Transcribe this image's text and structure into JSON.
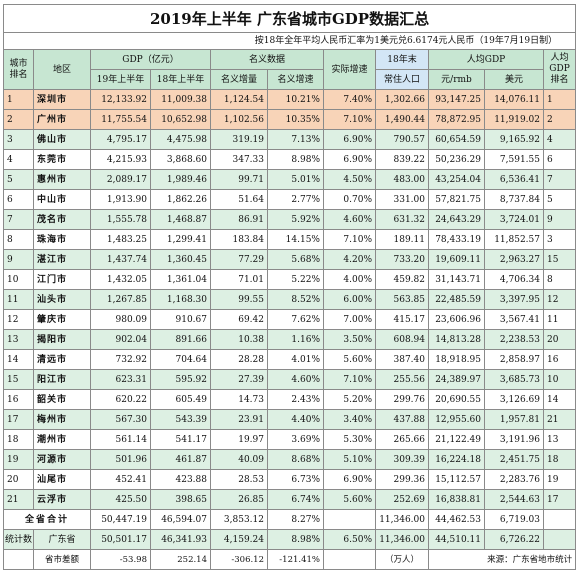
{
  "title": "2019年上半年 广东省城市GDP数据汇总",
  "subtitle": "按18年全年平均人民币汇率为1美元兑6.6174元人民币（19年7月19日制）",
  "headers": {
    "rank": "城市排名",
    "region": "地区",
    "gdp_group": "GDP（亿元）",
    "gdp_19h1": "19年上半年",
    "gdp_18h1": "18年上半年",
    "nominal_group": "名义数据",
    "nominal_increase": "名义增量",
    "nominal_growth": "名义增速",
    "real_growth": "实际增速",
    "pop_year": "18年末",
    "pop": "常住人口",
    "per_capita_group": "人均GDP",
    "pc_rmb": "元/rmb",
    "pc_usd": "美元",
    "pc_rank": "人均GDP排名"
  },
  "rows": [
    {
      "rank": "1",
      "city": "深圳市",
      "gdp19": "12,133.92",
      "gdp18": "11,009.38",
      "inc": "1,124.54",
      "ngr": "10.21%",
      "rgr": "7.40%",
      "pop": "1,302.66",
      "pcr": "93,147.25",
      "pcu": "14,076.11",
      "pcrank": "1"
    },
    {
      "rank": "2",
      "city": "广州市",
      "gdp19": "11,755.54",
      "gdp18": "10,652.98",
      "inc": "1,102.56",
      "ngr": "10.35%",
      "rgr": "7.10%",
      "pop": "1,490.44",
      "pcr": "78,872.95",
      "pcu": "11,919.02",
      "pcrank": "2"
    },
    {
      "rank": "3",
      "city": "佛山市",
      "gdp19": "4,795.17",
      "gdp18": "4,475.98",
      "inc": "319.19",
      "ngr": "7.13%",
      "rgr": "6.90%",
      "pop": "790.57",
      "pcr": "60,654.59",
      "pcu": "9,165.92",
      "pcrank": "4"
    },
    {
      "rank": "4",
      "city": "东莞市",
      "gdp19": "4,215.93",
      "gdp18": "3,868.60",
      "inc": "347.33",
      "ngr": "8.98%",
      "rgr": "6.90%",
      "pop": "839.22",
      "pcr": "50,236.29",
      "pcu": "7,591.55",
      "pcrank": "6"
    },
    {
      "rank": "5",
      "city": "惠州市",
      "gdp19": "2,089.17",
      "gdp18": "1,989.46",
      "inc": "99.71",
      "ngr": "5.01%",
      "rgr": "4.50%",
      "pop": "483.00",
      "pcr": "43,254.04",
      "pcu": "6,536.41",
      "pcrank": "7"
    },
    {
      "rank": "6",
      "city": "中山市",
      "gdp19": "1,913.90",
      "gdp18": "1,862.26",
      "inc": "51.64",
      "ngr": "2.77%",
      "rgr": "0.70%",
      "pop": "331.00",
      "pcr": "57,821.75",
      "pcu": "8,737.84",
      "pcrank": "5"
    },
    {
      "rank": "7",
      "city": "茂名市",
      "gdp19": "1,555.78",
      "gdp18": "1,468.87",
      "inc": "86.91",
      "ngr": "5.92%",
      "rgr": "4.60%",
      "pop": "631.32",
      "pcr": "24,643.29",
      "pcu": "3,724.01",
      "pcrank": "9"
    },
    {
      "rank": "8",
      "city": "珠海市",
      "gdp19": "1,483.25",
      "gdp18": "1,299.41",
      "inc": "183.84",
      "ngr": "14.15%",
      "rgr": "7.10%",
      "pop": "189.11",
      "pcr": "78,433.19",
      "pcu": "11,852.57",
      "pcrank": "3"
    },
    {
      "rank": "9",
      "city": "湛江市",
      "gdp19": "1,437.74",
      "gdp18": "1,360.45",
      "inc": "77.29",
      "ngr": "5.68%",
      "rgr": "4.20%",
      "pop": "733.20",
      "pcr": "19,609.11",
      "pcu": "2,963.27",
      "pcrank": "15"
    },
    {
      "rank": "10",
      "city": "江门市",
      "gdp19": "1,432.05",
      "gdp18": "1,361.04",
      "inc": "71.01",
      "ngr": "5.22%",
      "rgr": "4.00%",
      "pop": "459.82",
      "pcr": "31,143.71",
      "pcu": "4,706.34",
      "pcrank": "8"
    },
    {
      "rank": "11",
      "city": "汕头市",
      "gdp19": "1,267.85",
      "gdp18": "1,168.30",
      "inc": "99.55",
      "ngr": "8.52%",
      "rgr": "6.00%",
      "pop": "563.85",
      "pcr": "22,485.59",
      "pcu": "3,397.95",
      "pcrank": "12"
    },
    {
      "rank": "12",
      "city": "肇庆市",
      "gdp19": "980.09",
      "gdp18": "910.67",
      "inc": "69.42",
      "ngr": "7.62%",
      "rgr": "7.00%",
      "pop": "415.17",
      "pcr": "23,606.96",
      "pcu": "3,567.41",
      "pcrank": "11"
    },
    {
      "rank": "13",
      "city": "揭阳市",
      "gdp19": "902.04",
      "gdp18": "891.66",
      "inc": "10.38",
      "ngr": "1.16%",
      "rgr": "3.50%",
      "pop": "608.94",
      "pcr": "14,813.28",
      "pcu": "2,238.53",
      "pcrank": "20"
    },
    {
      "rank": "14",
      "city": "清远市",
      "gdp19": "732.92",
      "gdp18": "704.64",
      "inc": "28.28",
      "ngr": "4.01%",
      "rgr": "5.60%",
      "pop": "387.40",
      "pcr": "18,918.95",
      "pcu": "2,858.97",
      "pcrank": "16"
    },
    {
      "rank": "15",
      "city": "阳江市",
      "gdp19": "623.31",
      "gdp18": "595.92",
      "inc": "27.39",
      "ngr": "4.60%",
      "rgr": "7.10%",
      "pop": "255.56",
      "pcr": "24,389.97",
      "pcu": "3,685.73",
      "pcrank": "10"
    },
    {
      "rank": "16",
      "city": "韶关市",
      "gdp19": "620.22",
      "gdp18": "605.49",
      "inc": "14.73",
      "ngr": "2.43%",
      "rgr": "5.20%",
      "pop": "299.76",
      "pcr": "20,690.55",
      "pcu": "3,126.69",
      "pcrank": "14"
    },
    {
      "rank": "17",
      "city": "梅州市",
      "gdp19": "567.30",
      "gdp18": "543.39",
      "inc": "23.91",
      "ngr": "4.40%",
      "rgr": "3.40%",
      "pop": "437.88",
      "pcr": "12,955.60",
      "pcu": "1,957.81",
      "pcrank": "21"
    },
    {
      "rank": "18",
      "city": "潮州市",
      "gdp19": "561.14",
      "gdp18": "541.17",
      "inc": "19.97",
      "ngr": "3.69%",
      "rgr": "5.30%",
      "pop": "265.66",
      "pcr": "21,122.49",
      "pcu": "3,191.96",
      "pcrank": "13"
    },
    {
      "rank": "19",
      "city": "河源市",
      "gdp19": "501.96",
      "gdp18": "461.87",
      "inc": "40.09",
      "ngr": "8.68%",
      "rgr": "5.10%",
      "pop": "309.39",
      "pcr": "16,224.18",
      "pcu": "2,451.75",
      "pcrank": "18"
    },
    {
      "rank": "20",
      "city": "汕尾市",
      "gdp19": "452.41",
      "gdp18": "423.88",
      "inc": "28.53",
      "ngr": "6.73%",
      "rgr": "6.90%",
      "pop": "299.36",
      "pcr": "15,112.57",
      "pcu": "2,283.76",
      "pcrank": "19"
    },
    {
      "rank": "21",
      "city": "云浮市",
      "gdp19": "425.50",
      "gdp18": "398.65",
      "inc": "26.85",
      "ngr": "6.74%",
      "rgr": "5.60%",
      "pop": "252.69",
      "pcr": "16,838.81",
      "pcu": "2,544.63",
      "pcrank": "17"
    }
  ],
  "total": {
    "label": "全省合计",
    "gdp19": "50,447.19",
    "gdp18": "46,594.07",
    "inc": "3,853.12",
    "ngr": "8.27%",
    "pop": "11,346.00",
    "pcr": "44,462.53",
    "pcu": "6,719.03"
  },
  "stat": {
    "label": "统计数",
    "region": "广东省",
    "gdp19": "50,501.17",
    "gdp18": "46,341.93",
    "inc": "4,159.24",
    "ngr": "8.98%",
    "rgr": "6.50%",
    "pop": "11,346.00",
    "pcr": "44,510.11",
    "pcu": "6,726.22"
  },
  "diff": {
    "label": "省市差额",
    "gdp19": "-53.98",
    "gdp18": "252.14",
    "inc": "-306.12",
    "ngr": "-121.41%",
    "pop_unit": "（万人）",
    "source": "来源：广东省地市统计"
  }
}
